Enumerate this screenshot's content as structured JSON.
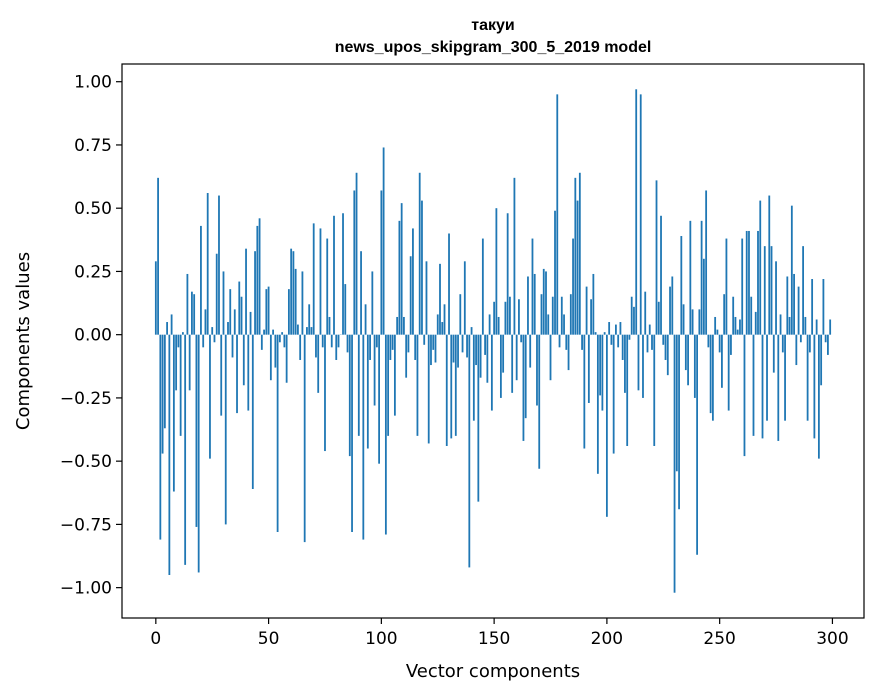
{
  "chart_data": {
    "type": "bar",
    "title": "такуи",
    "subtitle": "news_upos_skipgram_300_5_2019 model",
    "xlabel": "Vector components",
    "ylabel": "Components values",
    "xlim": [
      -15,
      314
    ],
    "ylim": [
      -1.12,
      1.07
    ],
    "xticks": [
      0,
      50,
      100,
      150,
      200,
      250,
      300
    ],
    "xtick_labels": [
      "0",
      "50",
      "100",
      "150",
      "200",
      "250",
      "300"
    ],
    "yticks": [
      1.0,
      0.75,
      0.5,
      0.25,
      0.0,
      -0.25,
      -0.5,
      -0.75,
      -1.0
    ],
    "ytick_labels": [
      "1.00",
      "0.75",
      "0.50",
      "0.25",
      "0.00",
      "−0.25",
      "−0.50",
      "−0.75",
      "−1.00"
    ],
    "grid": false,
    "bar_color": "#1f77b4",
    "values": [
      0.29,
      0.62,
      -0.81,
      -0.47,
      -0.37,
      0.05,
      -0.95,
      0.08,
      -0.62,
      -0.22,
      -0.05,
      -0.4,
      0.01,
      -0.91,
      0.24,
      -0.22,
      0.17,
      0.16,
      -0.76,
      -0.94,
      0.43,
      -0.05,
      0.1,
      0.56,
      -0.49,
      0.03,
      -0.03,
      0.32,
      0.55,
      -0.32,
      0.25,
      -0.75,
      0.05,
      0.18,
      -0.09,
      0.1,
      -0.31,
      0.21,
      0.15,
      -0.2,
      0.34,
      -0.3,
      0.09,
      -0.61,
      0.33,
      0.43,
      0.46,
      -0.06,
      0.02,
      0.18,
      0.19,
      -0.18,
      0.02,
      -0.13,
      -0.78,
      -0.03,
      0.01,
      -0.05,
      -0.19,
      0.18,
      0.34,
      0.33,
      0.26,
      0.04,
      -0.1,
      0.25,
      -0.82,
      0.03,
      0.12,
      0.03,
      0.44,
      -0.09,
      -0.23,
      0.42,
      -0.05,
      -0.46,
      0.38,
      0.07,
      -0.05,
      0.47,
      -0.1,
      -0.05,
      0.0,
      0.48,
      0.2,
      -0.07,
      -0.48,
      -0.78,
      0.57,
      0.64,
      -0.4,
      0.33,
      -0.81,
      0.12,
      -0.45,
      -0.1,
      0.25,
      -0.28,
      -0.05,
      -0.51,
      0.57,
      0.74,
      -0.79,
      -0.4,
      -0.1,
      -0.06,
      -0.32,
      0.07,
      0.45,
      0.52,
      0.07,
      -0.17,
      -0.07,
      0.31,
      0.42,
      -0.1,
      -0.4,
      0.64,
      0.53,
      -0.04,
      0.29,
      -0.43,
      -0.12,
      -0.06,
      -0.11,
      0.08,
      0.28,
      0.05,
      0.12,
      -0.44,
      0.4,
      -0.41,
      -0.11,
      -0.4,
      -0.13,
      0.16,
      -0.07,
      0.29,
      -0.09,
      -0.92,
      0.03,
      -0.34,
      -0.12,
      -0.66,
      -0.17,
      0.38,
      -0.08,
      -0.19,
      0.08,
      -0.3,
      0.13,
      0.5,
      0.07,
      -0.25,
      -0.15,
      0.13,
      0.48,
      0.15,
      -0.23,
      0.62,
      -0.18,
      0.14,
      -0.03,
      -0.42,
      -0.33,
      0.23,
      -0.13,
      0.38,
      0.24,
      -0.28,
      -0.53,
      0.16,
      0.26,
      0.25,
      0.08,
      -0.18,
      0.15,
      0.49,
      0.95,
      -0.05,
      0.15,
      0.08,
      -0.06,
      -0.14,
      0.16,
      0.38,
      0.62,
      0.53,
      0.64,
      -0.06,
      -0.45,
      0.19,
      -0.27,
      0.14,
      0.24,
      0.01,
      -0.55,
      -0.24,
      -0.3,
      0.01,
      -0.72,
      0.05,
      -0.04,
      -0.47,
      0.04,
      -0.05,
      0.05,
      -0.1,
      -0.23,
      -0.44,
      -0.02,
      0.15,
      0.11,
      0.97,
      -0.22,
      0.95,
      -0.25,
      0.17,
      -0.07,
      0.04,
      -0.06,
      -0.44,
      0.61,
      0.13,
      0.47,
      -0.04,
      -0.1,
      -0.16,
      0.19,
      0.23,
      -1.02,
      -0.54,
      -0.69,
      0.39,
      0.12,
      -0.14,
      -0.2,
      0.45,
      0.1,
      -0.25,
      -0.87,
      0.1,
      0.45,
      0.3,
      0.57,
      -0.05,
      -0.31,
      -0.34,
      0.07,
      0.02,
      -0.07,
      -0.21,
      0.16,
      0.38,
      -0.3,
      -0.08,
      0.15,
      0.07,
      0.02,
      0.06,
      0.38,
      -0.48,
      0.41,
      0.41,
      0.15,
      -0.4,
      0.09,
      0.41,
      0.53,
      -0.41,
      0.35,
      -0.34,
      0.55,
      0.35,
      -0.15,
      0.29,
      -0.42,
      0.08,
      -0.07,
      -0.34,
      0.23,
      0.07,
      0.51,
      0.24,
      -0.12,
      0.19,
      -0.03,
      0.35,
      0.07,
      -0.34,
      -0.07,
      0.22,
      -0.41,
      0.06,
      -0.49,
      -0.2,
      0.22,
      -0.03,
      -0.08,
      0.06
    ]
  }
}
